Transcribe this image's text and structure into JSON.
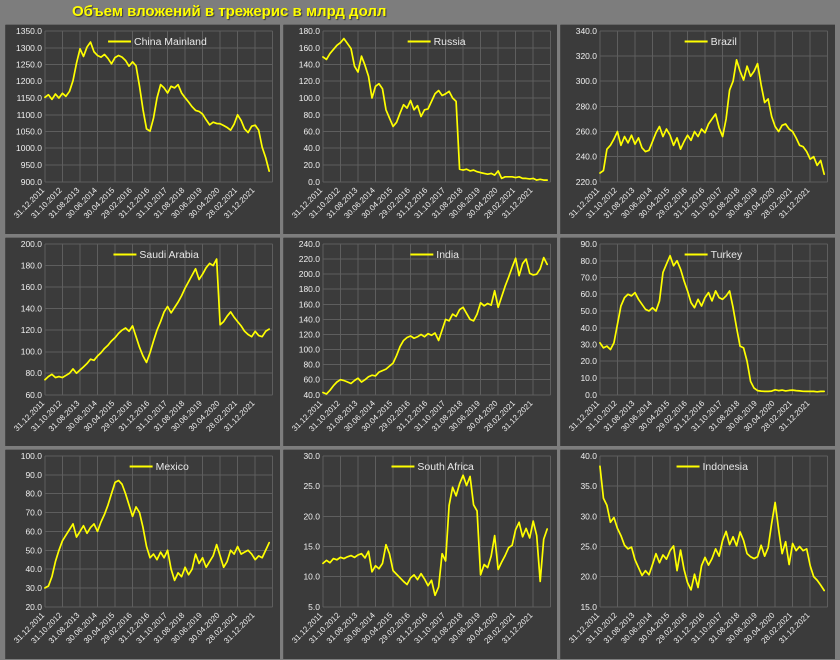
{
  "title": "Объем вложений в трежерис в млрд долл",
  "colors": {
    "page_bg": "#7d7d7d",
    "panel_bg": "#3b3b3b",
    "grid_line": "#5e5e5e",
    "series_line": "#ffff00",
    "title_text": "#ffff00",
    "tick_text": "#f1f1f1",
    "legend_text": "#e8e8e8"
  },
  "chart_data": {
    "type": "line",
    "x_tick_labels": [
      "31.12.2011",
      "31.10.2012",
      "31.08.2013",
      "30.06.2014",
      "30.04.2015",
      "29.02.2016",
      "31.12.2016",
      "31.10.2017",
      "31.08.2018",
      "30.06.2019",
      "30.04.2020",
      "28.02.2021",
      "31.12.2021"
    ],
    "x_months_per_point": 2,
    "x_domain_months": 130,
    "legend_position": "top-center",
    "grid": "on",
    "charts": [
      {
        "name": "China Mainland",
        "ylim": [
          900,
          1350
        ],
        "ystep": 50,
        "values": [
          1152,
          1160,
          1146,
          1162,
          1150,
          1164,
          1155,
          1170,
          1202,
          1254,
          1297,
          1274,
          1302,
          1317,
          1288,
          1277,
          1272,
          1280,
          1268,
          1252,
          1271,
          1277,
          1272,
          1262,
          1245,
          1258,
          1246,
          1185,
          1115,
          1058,
          1051,
          1090,
          1150,
          1190,
          1180,
          1165,
          1185,
          1180,
          1190,
          1165,
          1151,
          1138,
          1124,
          1113,
          1110,
          1102,
          1085,
          1070,
          1078,
          1074,
          1073,
          1068,
          1062,
          1054,
          1072,
          1100,
          1083,
          1058,
          1047,
          1066,
          1069,
          1054,
          1003,
          972,
          932
        ]
      },
      {
        "name": "Russia",
        "ylim": [
          0,
          180
        ],
        "ystep": 20,
        "values": [
          149,
          146,
          153,
          158,
          163,
          166,
          171,
          165,
          159,
          138,
          131,
          150,
          139,
          126,
          100,
          114,
          117,
          111,
          86,
          76,
          66,
          71,
          82,
          92,
          88,
          97,
          86,
          91,
          78,
          86,
          87,
          96,
          105,
          109,
          103,
          105,
          108,
          100,
          96,
          15,
          14,
          15,
          13,
          14,
          12,
          11,
          10,
          9,
          10,
          8,
          13,
          4,
          6,
          6,
          6,
          5,
          6,
          4,
          4,
          3.5,
          4,
          2,
          3,
          2,
          2
        ]
      },
      {
        "name": "Brazil",
        "ylim": [
          220,
          340
        ],
        "ystep": 20,
        "values": [
          227,
          229,
          246,
          249,
          254,
          260,
          249,
          256,
          251,
          257,
          250,
          255,
          247,
          244,
          245,
          252,
          259,
          264,
          256,
          262,
          257,
          249,
          255,
          246,
          252,
          257,
          253,
          260,
          256,
          262,
          259,
          266,
          270,
          274,
          263,
          256,
          270,
          293,
          300,
          317,
          308,
          301,
          312,
          304,
          308,
          314,
          297,
          283,
          286,
          272,
          264,
          260,
          265,
          266,
          262,
          260,
          255,
          249,
          248,
          244,
          238,
          240,
          233,
          237,
          226
        ]
      },
      {
        "name": "Saudi Arabia",
        "ylim": [
          60,
          200
        ],
        "ystep": 20,
        "values": [
          74,
          77,
          79,
          76,
          77,
          76,
          78,
          80,
          84,
          80,
          83,
          86,
          89,
          93,
          92,
          96,
          99,
          103,
          106,
          110,
          113,
          117,
          120,
          122,
          119,
          124,
          114,
          104,
          96,
          90,
          99,
          110,
          120,
          128,
          137,
          142,
          136,
          141,
          146,
          152,
          159,
          165,
          171,
          177,
          167,
          172,
          178,
          182,
          180,
          186,
          125,
          128,
          133,
          137,
          132,
          128,
          124,
          119,
          116,
          114,
          119,
          115,
          114,
          119,
          121
        ]
      },
      {
        "name": "India",
        "ylim": [
          40,
          240
        ],
        "ystep": 20,
        "values": [
          43,
          41,
          46,
          52,
          57,
          60,
          59,
          57,
          55,
          59,
          62,
          57,
          60,
          64,
          66,
          65,
          70,
          72,
          74,
          78,
          82,
          92,
          104,
          112,
          116,
          118,
          115,
          117,
          120,
          117,
          121,
          119,
          122,
          112,
          126,
          140,
          138,
          147,
          144,
          153,
          156,
          148,
          140,
          138,
          147,
          162,
          158,
          161,
          159,
          178,
          156,
          170,
          184,
          196,
          209,
          221,
          198,
          214,
          220,
          201,
          199,
          200,
          207,
          222,
          213
        ]
      },
      {
        "name": "Turkey",
        "ylim": [
          0,
          90
        ],
        "ystep": 10,
        "values": [
          31,
          28,
          29,
          27,
          31,
          42,
          53,
          58,
          60,
          59,
          61,
          57,
          54,
          51,
          50,
          52,
          50,
          56,
          73,
          78,
          83,
          77,
          80,
          75,
          68,
          62,
          55,
          52,
          57,
          53,
          58,
          61,
          56,
          62,
          58,
          57,
          59,
          62,
          52,
          40,
          29,
          28,
          20,
          8,
          4,
          2.5,
          2.2,
          2,
          2,
          2.2,
          3,
          2.5,
          2.8,
          2.3,
          2.6,
          2.8,
          2.5,
          2.3,
          2.1,
          2,
          2,
          2,
          1.8,
          2,
          2
        ]
      },
      {
        "name": "Mexico",
        "ylim": [
          20,
          100
        ],
        "ystep": 10,
        "values": [
          30,
          31,
          36,
          44,
          50,
          55,
          58,
          61,
          64,
          57,
          60,
          63,
          59,
          62,
          64,
          60,
          65,
          69,
          74,
          80,
          86,
          87,
          85,
          80,
          74,
          68,
          73,
          70,
          62,
          52,
          46,
          48,
          45,
          49,
          46,
          50,
          40,
          34,
          38,
          36,
          41,
          37,
          40,
          48,
          43,
          46,
          41,
          44,
          47,
          53,
          47,
          41,
          44,
          50,
          48,
          52,
          48,
          49,
          50,
          48,
          45,
          47,
          46,
          50,
          54
        ]
      },
      {
        "name": "South Africa",
        "ylim": [
          5,
          30
        ],
        "ystep": 5,
        "values": [
          12.2,
          12.7,
          12.3,
          13.0,
          12.8,
          13.2,
          13.0,
          13.3,
          13.5,
          13.2,
          13.6,
          13.8,
          13.1,
          14.2,
          10.8,
          11.8,
          11.3,
          12.2,
          15.3,
          13.8,
          11.0,
          10.4,
          9.8,
          9.2,
          8.7,
          9.8,
          10.3,
          9.5,
          10.5,
          9.6,
          8.5,
          9.4,
          6.9,
          8.3,
          13.8,
          12.6,
          21.8,
          24.8,
          23.4,
          25.4,
          26.8,
          25.1,
          26.6,
          21.9,
          20.9,
          10.3,
          12.0,
          11.5,
          13.4,
          16.8,
          11.2,
          12.4,
          13.5,
          14.8,
          15.2,
          17.8,
          19.0,
          16.6,
          18.0,
          16.4,
          19.2,
          16.8,
          9.2,
          16.2,
          17.9
        ]
      },
      {
        "name": "Indonesia",
        "ylim": [
          15,
          40
        ],
        "ystep": 5,
        "values": [
          38.3,
          33.0,
          31.8,
          29.0,
          29.8,
          28.0,
          26.8,
          25.2,
          24.6,
          24.9,
          22.8,
          21.5,
          20.2,
          21.0,
          20.3,
          22.0,
          23.8,
          22.3,
          23.6,
          22.9,
          24.3,
          25.1,
          21.0,
          24.4,
          21.2,
          19.0,
          17.8,
          20.4,
          18.2,
          21.8,
          23.2,
          21.9,
          23.0,
          24.6,
          23.4,
          26.0,
          27.5,
          25.3,
          26.6,
          25.1,
          27.4,
          26.0,
          23.8,
          23.3,
          23.0,
          23.3,
          25.2,
          23.4,
          24.8,
          28.8,
          32.3,
          27.8,
          23.8,
          25.8,
          22.0,
          25.5,
          24.3,
          25.0,
          24.3,
          24.6,
          21.8,
          20.0,
          19.4,
          18.6,
          17.7
        ]
      }
    ]
  }
}
